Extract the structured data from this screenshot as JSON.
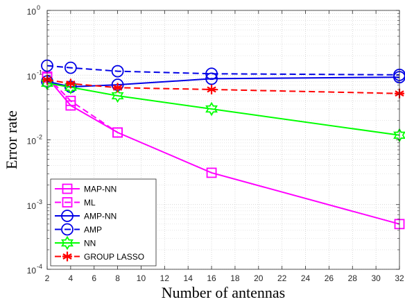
{
  "chart_data": {
    "type": "line",
    "xlabel": "Number of antennas",
    "ylabel": "Error rate",
    "yscale": "log",
    "xlim": [
      2,
      32
    ],
    "ylim": [
      0.0001,
      1
    ],
    "grid": true,
    "legend_position": "bottom-left",
    "x_ticks": [
      "2",
      "4",
      "6",
      "8",
      "10",
      "12",
      "14",
      "16",
      "18",
      "20",
      "22",
      "24",
      "26",
      "28",
      "30",
      "32"
    ],
    "y_ticks": [
      {
        "base": "10",
        "exp": "0"
      },
      {
        "base": "10",
        "exp": "-1"
      },
      {
        "base": "10",
        "exp": "-2"
      },
      {
        "base": "10",
        "exp": "-3"
      },
      {
        "base": "10",
        "exp": "-4"
      }
    ],
    "series": [
      {
        "name": "MAP-NN",
        "color": "#ff00ff",
        "line": "solid",
        "marker": "square",
        "x": [
          2,
          4,
          8,
          16,
          32
        ],
        "y": [
          0.092,
          0.034,
          0.013,
          0.0031,
          0.0005
        ]
      },
      {
        "name": "ML",
        "color": "#ff00ff",
        "line": "dashed",
        "marker": "square",
        "x": [
          2,
          4,
          8
        ],
        "y": [
          0.095,
          0.04,
          0.013
        ]
      },
      {
        "name": "AMP-NN",
        "color": "#0000e6",
        "line": "solid",
        "marker": "circle",
        "x": [
          2,
          4,
          8,
          16,
          32
        ],
        "y": [
          0.08,
          0.066,
          0.071,
          0.088,
          0.093
        ]
      },
      {
        "name": "AMP",
        "color": "#0000e6",
        "line": "dashed",
        "marker": "circle",
        "x": [
          2,
          4,
          8,
          16,
          32
        ],
        "y": [
          0.14,
          0.13,
          0.115,
          0.105,
          0.101
        ]
      },
      {
        "name": "NN",
        "color": "#00ff00",
        "line": "solid",
        "marker": "hexagram",
        "x": [
          2,
          4,
          8,
          16,
          32
        ],
        "y": [
          0.075,
          0.065,
          0.048,
          0.03,
          0.0118
        ]
      },
      {
        "name": "GROUP LASSO",
        "color": "#ff0000",
        "line": "dashed",
        "marker": "asterisk",
        "x": [
          2,
          4,
          8,
          16,
          32
        ],
        "y": [
          0.085,
          0.074,
          0.064,
          0.06,
          0.052
        ]
      }
    ]
  }
}
